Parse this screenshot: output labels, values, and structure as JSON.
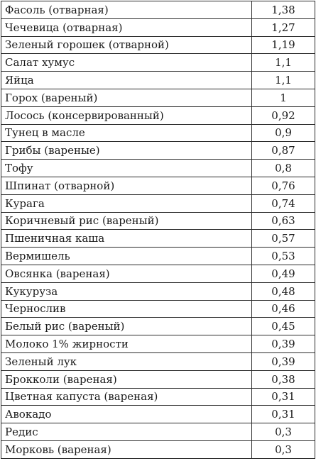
{
  "table": {
    "rows": [
      {
        "name": "Фасоль (отварная)",
        "value": "1,38"
      },
      {
        "name": "Чечевица (отварная)",
        "value": "1,27"
      },
      {
        "name": "Зеленый горошек (отварной)",
        "value": "1,19"
      },
      {
        "name": "Салат хумус",
        "value": "1,1"
      },
      {
        "name": "Яйца",
        "value": "1,1"
      },
      {
        "name": "Горох (вареный)",
        "value": "1"
      },
      {
        "name": "Лосось (консервированный)",
        "value": "0,92"
      },
      {
        "name": "Тунец в масле",
        "value": "0,9"
      },
      {
        "name": "Грибы (вареные)",
        "value": "0,87"
      },
      {
        "name": "Тофу",
        "value": "0,8"
      },
      {
        "name": "Шпинат (отварной)",
        "value": "0,76"
      },
      {
        "name": "Курага",
        "value": "0,74"
      },
      {
        "name": "Коричневый рис (вареный)",
        "value": "0,63"
      },
      {
        "name": "Пшеничная каша",
        "value": "0,57"
      },
      {
        "name": "Вермишель",
        "value": "0,53"
      },
      {
        "name": "Овсянка (вареная)",
        "value": "0,49"
      },
      {
        "name": "Кукуруза",
        "value": "0,48"
      },
      {
        "name": "Чернослив",
        "value": "0,46"
      },
      {
        "name": "Белый рис (вареный)",
        "value": "0,45"
      },
      {
        "name": "Молоко 1% жирности",
        "value": "0,39"
      },
      {
        "name": "Зеленый лук",
        "value": "0,39"
      },
      {
        "name": "Брокколи (вареная)",
        "value": "0,38"
      },
      {
        "name": "Цветная капуста (вареная)",
        "value": "0,31"
      },
      {
        "name": "Авокадо",
        "value": "0,31"
      },
      {
        "name": "Редис",
        "value": "0,3"
      },
      {
        "name": "Морковь (вареная)",
        "value": "0,3"
      }
    ]
  }
}
